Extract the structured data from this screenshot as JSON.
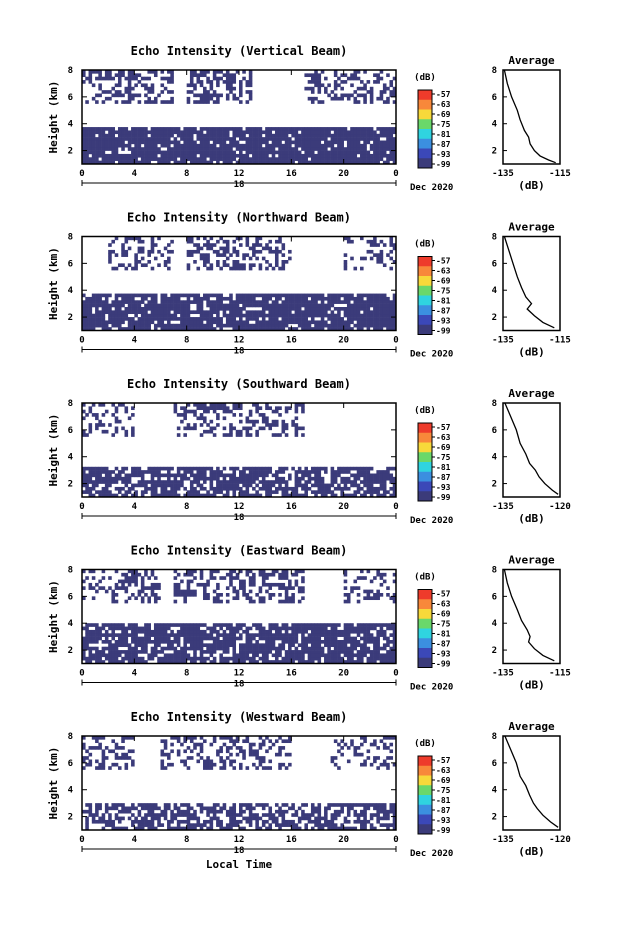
{
  "chart_data": [
    {
      "type": "heatmap",
      "title": "Echo Intensity (Vertical Beam)",
      "ylabel": "Height (km)",
      "y_ticks": [
        "8",
        "6",
        "4",
        "2"
      ],
      "x_ticks": [
        "0",
        "4",
        "8",
        "12",
        "16",
        "20",
        "0"
      ],
      "x_second_label": "18",
      "date": "Dec 2020",
      "colorbar": {
        "unit": "(dB)",
        "ticks": [
          "-57",
          "-63",
          "-69",
          "-75",
          "-81",
          "-87",
          "-93",
          "-99"
        ]
      },
      "average": {
        "title": "Average",
        "xlabel": "(dB)",
        "x_ticks": [
          "-135",
          "-115"
        ],
        "y_ticks": [
          "8",
          "6",
          "4",
          "2"
        ],
        "xlim": [
          -135,
          -115
        ],
        "ylim": [
          1,
          8
        ],
        "profile": [
          [
            -134.5,
            8.0
          ],
          [
            -133.5,
            7.0
          ],
          [
            -132.0,
            6.0
          ],
          [
            -130.0,
            5.0
          ],
          [
            -129.0,
            4.3
          ],
          [
            -127.5,
            3.5
          ],
          [
            -126.0,
            3.0
          ],
          [
            -125.5,
            2.5
          ],
          [
            -124.0,
            2.0
          ],
          [
            -122.0,
            1.6
          ],
          [
            -119.0,
            1.3
          ],
          [
            -116.5,
            1.1
          ]
        ]
      },
      "bands": [
        {
          "ymin": 1.0,
          "ymax": 3.7,
          "xmin": 0,
          "xmax": 24,
          "density": 0.9
        },
        {
          "ymin": 5.5,
          "ymax": 8.0,
          "xmin": 0,
          "xmax": 7,
          "density": 0.45
        },
        {
          "ymin": 5.5,
          "ymax": 8.0,
          "xmin": 8,
          "xmax": 13,
          "density": 0.45
        },
        {
          "ymin": 5.5,
          "ymax": 8.0,
          "xmin": 17,
          "xmax": 24,
          "density": 0.4
        }
      ]
    },
    {
      "type": "heatmap",
      "title": "Echo Intensity (Northward Beam)",
      "ylabel": "Height (km)",
      "y_ticks": [
        "8",
        "6",
        "4",
        "2"
      ],
      "x_ticks": [
        "0",
        "4",
        "8",
        "12",
        "16",
        "20",
        "0"
      ],
      "x_second_label": "18",
      "date": "Dec 2020",
      "colorbar": {
        "unit": "(dB)",
        "ticks": [
          "-57",
          "-63",
          "-69",
          "-75",
          "-81",
          "-87",
          "-93",
          "-99"
        ]
      },
      "average": {
        "title": "Average",
        "xlabel": "(dB)",
        "x_ticks": [
          "-135",
          "-115"
        ],
        "y_ticks": [
          "8",
          "6",
          "4",
          "2"
        ],
        "xlim": [
          -135,
          -115
        ],
        "ylim": [
          1,
          8
        ],
        "profile": [
          [
            -134.5,
            8.0
          ],
          [
            -133.0,
            7.0
          ],
          [
            -131.5,
            6.0
          ],
          [
            -130.0,
            5.0
          ],
          [
            -128.5,
            4.2
          ],
          [
            -127.0,
            3.5
          ],
          [
            -125.0,
            3.0
          ],
          [
            -126.5,
            2.6
          ],
          [
            -124.0,
            2.1
          ],
          [
            -121.0,
            1.6
          ],
          [
            -117.0,
            1.2
          ]
        ]
      },
      "bands": [
        {
          "ymin": 1.0,
          "ymax": 3.7,
          "xmin": 0,
          "xmax": 24,
          "density": 0.85
        },
        {
          "ymin": 5.5,
          "ymax": 8.0,
          "xmin": 2,
          "xmax": 7,
          "density": 0.35
        },
        {
          "ymin": 5.5,
          "ymax": 8.0,
          "xmin": 8,
          "xmax": 16,
          "density": 0.4
        },
        {
          "ymin": 5.5,
          "ymax": 8.0,
          "xmin": 20,
          "xmax": 24,
          "density": 0.35
        }
      ]
    },
    {
      "type": "heatmap",
      "title": "Echo Intensity (Southward Beam)",
      "ylabel": "Height (km)",
      "y_ticks": [
        "8",
        "6",
        "4",
        "2"
      ],
      "x_ticks": [
        "0",
        "4",
        "8",
        "12",
        "16",
        "20",
        "0"
      ],
      "x_second_label": "18",
      "date": "Dec 2020",
      "colorbar": {
        "unit": "(dB)",
        "ticks": [
          "-57",
          "-63",
          "-69",
          "-75",
          "-81",
          "-87",
          "-93",
          "-99"
        ]
      },
      "average": {
        "title": "Average",
        "xlabel": "(dB)",
        "x_ticks": [
          "-135",
          "-120"
        ],
        "y_ticks": [
          "8",
          "6",
          "4",
          "2"
        ],
        "xlim": [
          -135,
          -120
        ],
        "ylim": [
          1,
          8
        ],
        "profile": [
          [
            -134.5,
            8.0
          ],
          [
            -133.0,
            7.0
          ],
          [
            -131.5,
            6.0
          ],
          [
            -130.5,
            5.0
          ],
          [
            -129.0,
            4.2
          ],
          [
            -128.0,
            3.5
          ],
          [
            -126.5,
            3.0
          ],
          [
            -125.5,
            2.5
          ],
          [
            -124.0,
            2.0
          ],
          [
            -122.0,
            1.5
          ],
          [
            -120.5,
            1.2
          ]
        ]
      },
      "bands": [
        {
          "ymin": 1.0,
          "ymax": 3.2,
          "xmin": 0,
          "xmax": 24,
          "density": 0.75
        },
        {
          "ymin": 5.5,
          "ymax": 8.0,
          "xmin": 0,
          "xmax": 4,
          "density": 0.3
        },
        {
          "ymin": 5.5,
          "ymax": 8.0,
          "xmin": 7,
          "xmax": 17,
          "density": 0.4
        }
      ]
    },
    {
      "type": "heatmap",
      "title": "Echo Intensity (Eastward Beam)",
      "ylabel": "Height (km)",
      "y_ticks": [
        "8",
        "6",
        "4",
        "2"
      ],
      "x_ticks": [
        "0",
        "4",
        "8",
        "12",
        "16",
        "20",
        "0"
      ],
      "x_second_label": "18",
      "date": "Dec 2020",
      "colorbar": {
        "unit": "(dB)",
        "ticks": [
          "-57",
          "-63",
          "-69",
          "-75",
          "-81",
          "-87",
          "-93",
          "-99"
        ]
      },
      "average": {
        "title": "Average",
        "xlabel": "(dB)",
        "x_ticks": [
          "-135",
          "-115"
        ],
        "y_ticks": [
          "8",
          "6",
          "4",
          "2"
        ],
        "xlim": [
          -135,
          -115
        ],
        "ylim": [
          1,
          8
        ],
        "profile": [
          [
            -134.5,
            8.0
          ],
          [
            -133.5,
            7.0
          ],
          [
            -132.0,
            6.0
          ],
          [
            -130.0,
            5.0
          ],
          [
            -128.5,
            4.2
          ],
          [
            -126.5,
            3.5
          ],
          [
            -125.5,
            3.0
          ],
          [
            -126.0,
            2.6
          ],
          [
            -124.0,
            2.1
          ],
          [
            -121.0,
            1.6
          ],
          [
            -117.0,
            1.2
          ]
        ]
      },
      "bands": [
        {
          "ymin": 1.0,
          "ymax": 3.8,
          "xmin": 0,
          "xmax": 24,
          "density": 0.8
        },
        {
          "ymin": 5.5,
          "ymax": 8.0,
          "xmin": 0,
          "xmax": 6,
          "density": 0.35
        },
        {
          "ymin": 5.5,
          "ymax": 8.0,
          "xmin": 7,
          "xmax": 17,
          "density": 0.45
        },
        {
          "ymin": 5.5,
          "ymax": 8.0,
          "xmin": 20,
          "xmax": 24,
          "density": 0.3
        }
      ]
    },
    {
      "type": "heatmap",
      "title": "Echo Intensity (Westward Beam)",
      "ylabel": "Height (km)",
      "y_ticks": [
        "8",
        "6",
        "4",
        "2"
      ],
      "x_ticks": [
        "0",
        "4",
        "8",
        "12",
        "16",
        "20",
        "0"
      ],
      "x_second_label": "18",
      "date": "Dec 2020",
      "xlabel": "Local Time",
      "colorbar": {
        "unit": "(dB)",
        "ticks": [
          "-57",
          "-63",
          "-69",
          "-75",
          "-81",
          "-87",
          "-93",
          "-99"
        ]
      },
      "average": {
        "title": "Average",
        "xlabel": "(dB)",
        "x_ticks": [
          "-135",
          "-120"
        ],
        "y_ticks": [
          "8",
          "6",
          "4",
          "2"
        ],
        "xlim": [
          -135,
          -120
        ],
        "ylim": [
          1,
          8
        ],
        "profile": [
          [
            -134.5,
            8.0
          ],
          [
            -133.0,
            7.0
          ],
          [
            -131.5,
            6.0
          ],
          [
            -130.5,
            5.0
          ],
          [
            -129.0,
            4.3
          ],
          [
            -128.0,
            3.6
          ],
          [
            -127.0,
            3.0
          ],
          [
            -126.0,
            2.6
          ],
          [
            -124.5,
            2.1
          ],
          [
            -122.5,
            1.6
          ],
          [
            -120.5,
            1.2
          ]
        ]
      },
      "bands": [
        {
          "ymin": 1.0,
          "ymax": 2.8,
          "xmin": 0,
          "xmax": 24,
          "density": 0.65
        },
        {
          "ymin": 5.5,
          "ymax": 8.0,
          "xmin": 0,
          "xmax": 4,
          "density": 0.35
        },
        {
          "ymin": 5.5,
          "ymax": 8.0,
          "xmin": 6,
          "xmax": 16,
          "density": 0.4
        },
        {
          "ymin": 5.5,
          "ymax": 8.0,
          "xmin": 19,
          "xmax": 24,
          "density": 0.3
        }
      ]
    }
  ],
  "colors": {
    "echo": "#3b3b7a",
    "colorbar": [
      "#ee3b2b",
      "#f8883a",
      "#f7d93a",
      "#6ad86a",
      "#2fd4e0",
      "#3b8fe0",
      "#3b48b8",
      "#3b3b7a"
    ]
  }
}
